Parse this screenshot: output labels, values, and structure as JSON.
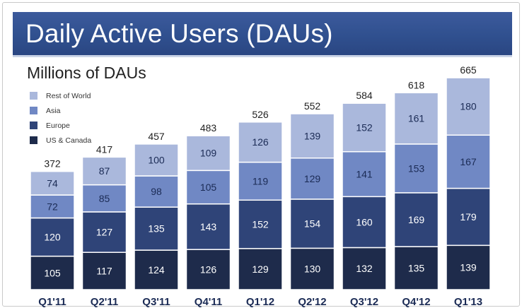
{
  "header": {
    "title": "Daily Active Users (DAUs)"
  },
  "chart_data": {
    "type": "bar",
    "stacked": true,
    "title": "Daily Active Users (DAUs)",
    "subtitle": "Millions of DAUs",
    "categories": [
      "Q1'11",
      "Q2'11",
      "Q3'11",
      "Q4'11",
      "Q1'12",
      "Q2'12",
      "Q3'12",
      "Q4'12",
      "Q1'13"
    ],
    "series": [
      {
        "name": "US & Canada",
        "color": "#1e2b4b",
        "values": [
          105,
          117,
          124,
          126,
          129,
          130,
          132,
          135,
          139
        ]
      },
      {
        "name": "Europe",
        "color": "#2f4478",
        "values": [
          120,
          127,
          135,
          143,
          152,
          154,
          160,
          169,
          179
        ]
      },
      {
        "name": "Asia",
        "color": "#7088c4",
        "values": [
          72,
          85,
          98,
          105,
          119,
          129,
          141,
          153,
          167
        ]
      },
      {
        "name": "Rest of World",
        "color": "#aab8dc",
        "values": [
          74,
          87,
          100,
          109,
          126,
          139,
          152,
          161,
          180
        ]
      }
    ],
    "totals": [
      372,
      417,
      457,
      483,
      526,
      552,
      584,
      618,
      665
    ],
    "legend_position": "top-left",
    "ylim": [
      0,
      700
    ]
  }
}
